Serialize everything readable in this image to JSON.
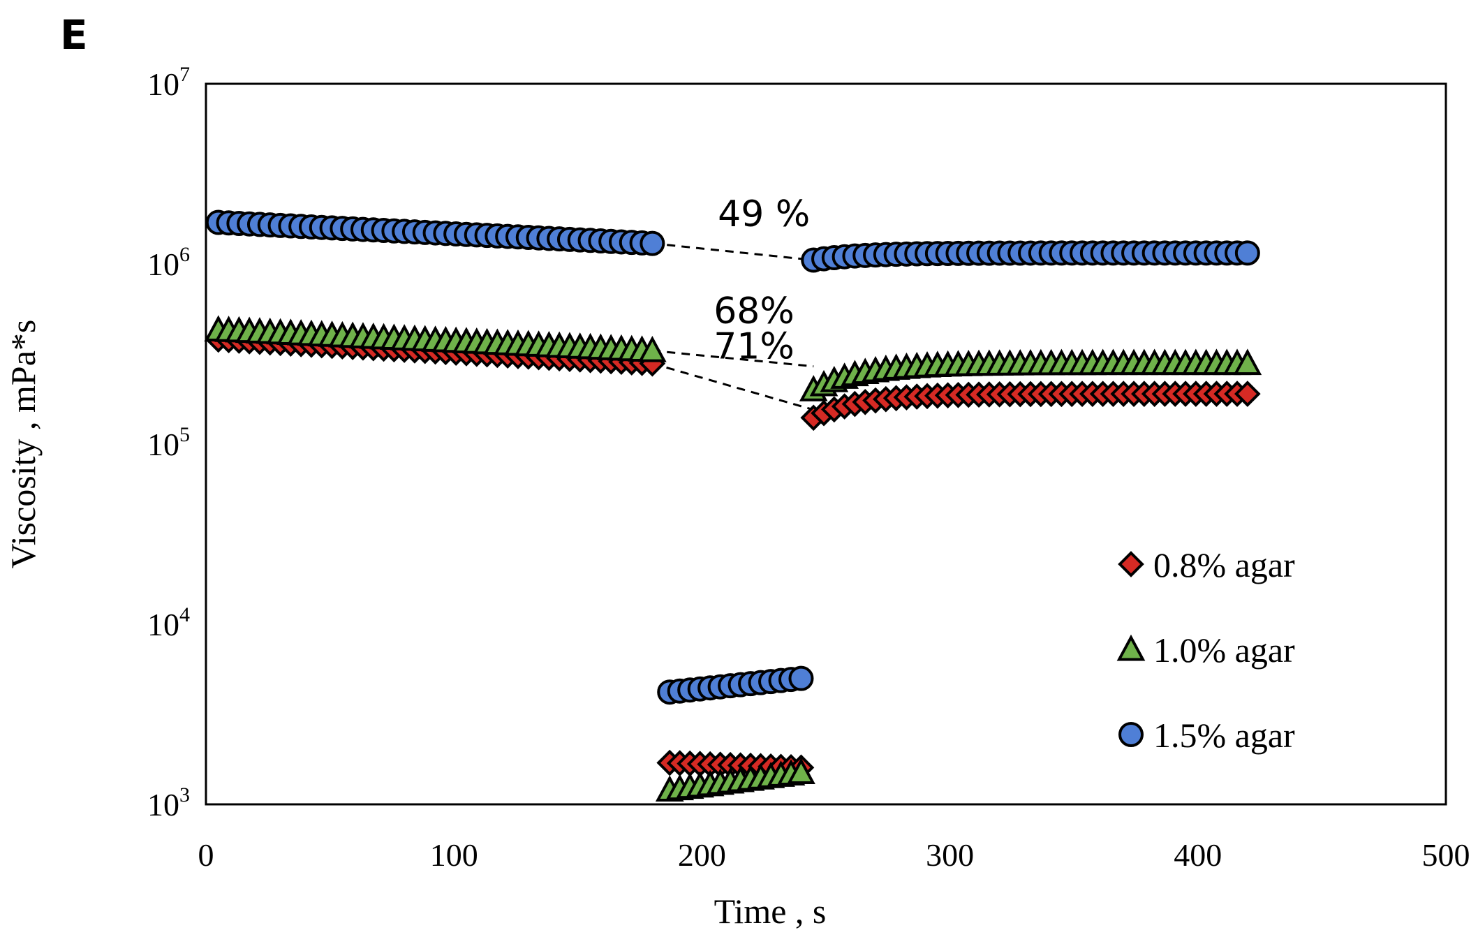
{
  "panel_label": "E",
  "chart_data": {
    "type": "scatter",
    "title": "",
    "xlabel": "Time , s",
    "ylabel": "Viscosity , mPa*s",
    "xlim": [
      0,
      500
    ],
    "ylim": [
      1000,
      10000000
    ],
    "yscale": "log",
    "x_ticks": [
      "0",
      "100",
      "200",
      "300",
      "400",
      "500"
    ],
    "x_tick_values": [
      0,
      100,
      200,
      300,
      400,
      500
    ],
    "y_ticks": [
      {
        "base": "10",
        "exp": "3",
        "value": 1000
      },
      {
        "base": "10",
        "exp": "4",
        "value": 10000
      },
      {
        "base": "10",
        "exp": "5",
        "value": 100000
      },
      {
        "base": "10",
        "exp": "6",
        "value": 1000000
      },
      {
        "base": "10",
        "exp": "7",
        "value": 10000000
      }
    ],
    "legend_position": "lower-right",
    "series": [
      {
        "name": "0.8% agar",
        "marker": "diamond",
        "color": "#d62a24",
        "segments": [
          {
            "x_start": 5,
            "x_end": 180,
            "y_start": 380000,
            "y_end": 280000
          },
          {
            "x_start": 187,
            "x_end": 240,
            "y_start": 1700,
            "y_end": 1600
          },
          {
            "x_start": 245,
            "x_end": 420,
            "y_start": 140000,
            "y_end": 190000,
            "shape": "recovery"
          }
        ]
      },
      {
        "name": "1.0% agar",
        "marker": "triangle",
        "color": "#6fb24a",
        "segments": [
          {
            "x_start": 5,
            "x_end": 180,
            "y_start": 430000,
            "y_end": 330000
          },
          {
            "x_start": 187,
            "x_end": 240,
            "y_start": 1200,
            "y_end": 1500
          },
          {
            "x_start": 245,
            "x_end": 420,
            "y_start": 200000,
            "y_end": 280000,
            "shape": "recovery"
          }
        ]
      },
      {
        "name": "1.5% agar",
        "marker": "circle",
        "color": "#4f7fd6",
        "segments": [
          {
            "x_start": 5,
            "x_end": 180,
            "y_start": 1700000,
            "y_end": 1300000
          },
          {
            "x_start": 187,
            "x_end": 240,
            "y_start": 4200,
            "y_end": 5000
          },
          {
            "x_start": 245,
            "x_end": 420,
            "y_start": 1050000,
            "y_end": 1150000,
            "shape": "recovery"
          }
        ]
      }
    ],
    "recovery_lines": [
      {
        "from_x": 180,
        "from_y": 1300000,
        "to_x": 245,
        "to_y": 1050000
      },
      {
        "from_x": 180,
        "from_y": 330000,
        "to_x": 245,
        "to_y": 270000
      },
      {
        "from_x": 180,
        "from_y": 280000,
        "to_x": 245,
        "to_y": 155000
      }
    ],
    "annotations": [
      {
        "text": "49 %",
        "x": 225,
        "y": 1900000
      },
      {
        "text": "68%",
        "x": 221,
        "y": 550000
      },
      {
        "text": "71%",
        "x": 221,
        "y": 350000
      }
    ]
  }
}
